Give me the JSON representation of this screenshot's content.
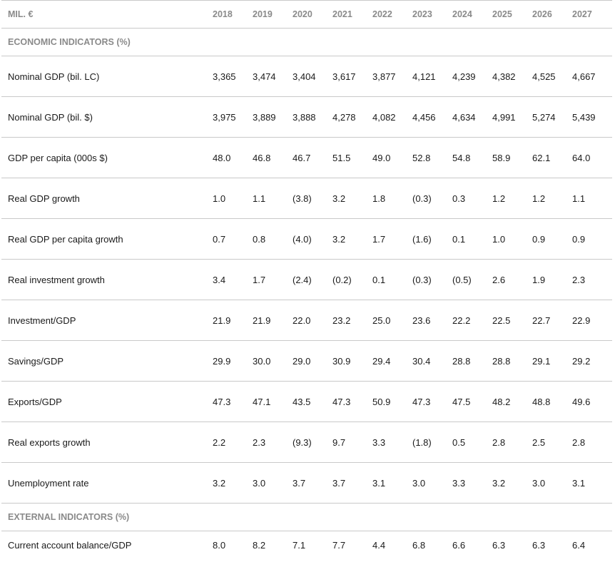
{
  "header": {
    "unit": "MIL. €",
    "years": [
      "2018",
      "2019",
      "2020",
      "2021",
      "2022",
      "2023",
      "2024",
      "2025",
      "2026",
      "2027"
    ]
  },
  "sections": [
    {
      "title": "ECONOMIC INDICATORS (%)",
      "rows": [
        {
          "label": "Nominal GDP (bil. LC)",
          "values": [
            "3,365",
            "3,474",
            "3,404",
            "3,617",
            "3,877",
            "4,121",
            "4,239",
            "4,382",
            "4,525",
            "4,667"
          ]
        },
        {
          "label": "Nominal GDP (bil. $)",
          "values": [
            "3,975",
            "3,889",
            "3,888",
            "4,278",
            "4,082",
            "4,456",
            "4,634",
            "4,991",
            "5,274",
            "5,439"
          ]
        },
        {
          "label": "GDP per capita (000s $)",
          "values": [
            "48.0",
            "46.8",
            "46.7",
            "51.5",
            "49.0",
            "52.8",
            "54.8",
            "58.9",
            "62.1",
            "64.0"
          ]
        },
        {
          "label": "Real GDP growth",
          "values": [
            "1.0",
            "1.1",
            "(3.8)",
            "3.2",
            "1.8",
            "(0.3)",
            "0.3",
            "1.2",
            "1.2",
            "1.1"
          ]
        },
        {
          "label": "Real GDP per capita growth",
          "values": [
            "0.7",
            "0.8",
            "(4.0)",
            "3.2",
            "1.7",
            "(1.6)",
            "0.1",
            "1.0",
            "0.9",
            "0.9"
          ]
        },
        {
          "label": "Real investment growth",
          "values": [
            "3.4",
            "1.7",
            "(2.4)",
            "(0.2)",
            "0.1",
            "(0.3)",
            "(0.5)",
            "2.6",
            "1.9",
            "2.3"
          ]
        },
        {
          "label": "Investment/GDP",
          "values": [
            "21.9",
            "21.9",
            "22.0",
            "23.2",
            "25.0",
            "23.6",
            "22.2",
            "22.5",
            "22.7",
            "22.9"
          ]
        },
        {
          "label": "Savings/GDP",
          "values": [
            "29.9",
            "30.0",
            "29.0",
            "30.9",
            "29.4",
            "30.4",
            "28.8",
            "28.8",
            "29.1",
            "29.2"
          ]
        },
        {
          "label": "Exports/GDP",
          "values": [
            "47.3",
            "47.1",
            "43.5",
            "47.3",
            "50.9",
            "47.3",
            "47.5",
            "48.2",
            "48.8",
            "49.6"
          ]
        },
        {
          "label": "Real exports growth",
          "values": [
            "2.2",
            "2.3",
            "(9.3)",
            "9.7",
            "3.3",
            "(1.8)",
            "0.5",
            "2.8",
            "2.5",
            "2.8"
          ]
        },
        {
          "label": "Unemployment rate",
          "values": [
            "3.2",
            "3.0",
            "3.7",
            "3.7",
            "3.1",
            "3.0",
            "3.3",
            "3.2",
            "3.0",
            "3.1"
          ]
        }
      ]
    },
    {
      "title": "EXTERNAL INDICATORS (%)",
      "rows": [
        {
          "label": "Current account balance/GDP",
          "values": [
            "8.0",
            "8.2",
            "7.1",
            "7.7",
            "4.4",
            "6.8",
            "6.6",
            "6.3",
            "6.3",
            "6.4"
          ]
        }
      ]
    }
  ]
}
